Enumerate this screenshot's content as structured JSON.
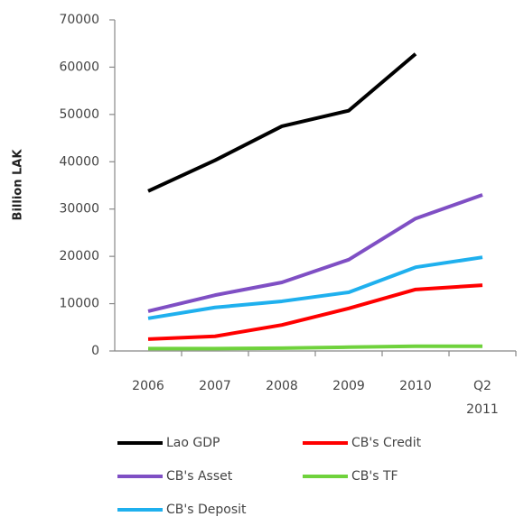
{
  "chart_data": {
    "type": "line",
    "ylabel": "Billion LAK",
    "categories": [
      "2006",
      "2007",
      "2008",
      "2009",
      "2010",
      "Q2 2011"
    ],
    "series": [
      {
        "name": "Lao GDP",
        "color": "#000000",
        "values": [
          33800,
          40300,
          47500,
          50800,
          62800,
          null
        ]
      },
      {
        "name": "CB's Credit",
        "color": "#ff0000",
        "values": [
          2500,
          3100,
          5500,
          9000,
          13000,
          13900
        ]
      },
      {
        "name": "CB's Asset",
        "color": "#7f4fc4",
        "values": [
          8400,
          11800,
          14500,
          19300,
          28000,
          33000
        ]
      },
      {
        "name": "CB's TF",
        "color": "#6fd23c",
        "values": [
          500,
          500,
          600,
          800,
          1000,
          1000
        ]
      },
      {
        "name": "CB's Deposit",
        "color": "#1fb0ee",
        "values": [
          6900,
          9200,
          10500,
          12400,
          17700,
          19800
        ]
      }
    ],
    "ylim": [
      0,
      70000
    ],
    "yticks": [
      0,
      10000,
      20000,
      30000,
      40000,
      50000,
      60000,
      70000
    ],
    "grid": false
  }
}
